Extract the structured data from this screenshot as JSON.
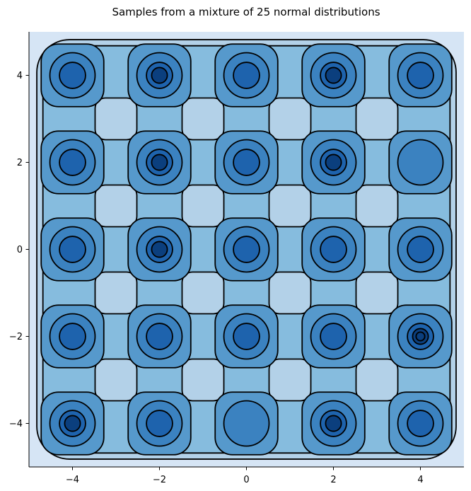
{
  "chart_data": {
    "type": "contour",
    "title": "Samples from a mixture of 25 normal distributions",
    "xlabel": "",
    "ylabel": "",
    "xlim": [
      -5,
      5
    ],
    "ylim": [
      -5,
      5
    ],
    "xticks": [
      -4,
      -2,
      0,
      2,
      4
    ],
    "yticks": [
      -4,
      -2,
      0,
      2,
      4
    ],
    "xtick_labels": [
      "−4",
      "−2",
      "0",
      "2",
      "4"
    ],
    "ytick_labels": [
      "−4",
      "−2",
      "0",
      "2",
      "4"
    ],
    "grid": false,
    "colormap": "Blues",
    "contour_line_color": "#000000",
    "fill_levels": [
      "#d6e5f5",
      "#b3d1e8",
      "#86bcde",
      "#5699cc",
      "#3b82c0",
      "#1e63ad",
      "#0b3f7e"
    ],
    "component_means": [
      [
        -4,
        4
      ],
      [
        -2,
        4
      ],
      [
        0,
        4
      ],
      [
        2,
        4
      ],
      [
        4,
        4
      ],
      [
        -4,
        2
      ],
      [
        -2,
        2
      ],
      [
        0,
        2
      ],
      [
        2,
        2
      ],
      [
        4,
        2
      ],
      [
        -4,
        0
      ],
      [
        -2,
        0
      ],
      [
        0,
        0
      ],
      [
        2,
        0
      ],
      [
        4,
        0
      ],
      [
        -4,
        -2
      ],
      [
        -2,
        -2
      ],
      [
        0,
        -2
      ],
      [
        2,
        -2
      ],
      [
        4,
        -2
      ],
      [
        -4,
        -4
      ],
      [
        -2,
        -4
      ],
      [
        0,
        -4
      ],
      [
        2,
        -4
      ],
      [
        4,
        -4
      ]
    ],
    "peak_density_level": [
      [
        5,
        6,
        5,
        6,
        5
      ],
      [
        5,
        6,
        5,
        6,
        4
      ],
      [
        5,
        6,
        5,
        5,
        5
      ],
      [
        5,
        5,
        5,
        5,
        7
      ],
      [
        6,
        5,
        4,
        6,
        5
      ]
    ]
  }
}
